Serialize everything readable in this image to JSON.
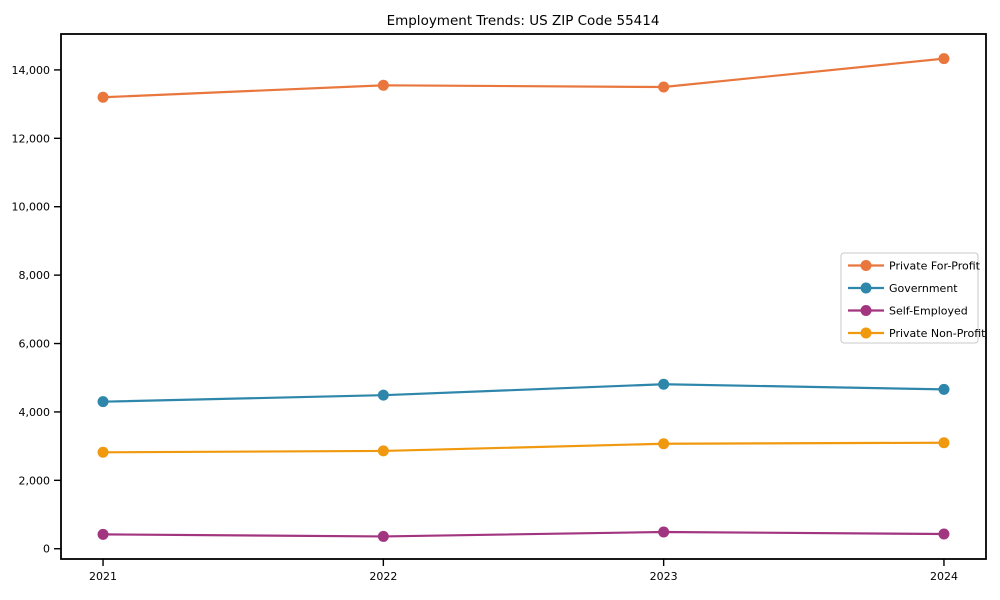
{
  "chart_data": {
    "type": "line",
    "title": "Employment Trends: US ZIP Code 55414",
    "xlabel": "",
    "ylabel": "",
    "x": [
      2021,
      2022,
      2023,
      2024
    ],
    "x_tick_labels": [
      "2021",
      "2022",
      "2023",
      "2024"
    ],
    "series": [
      {
        "name": "Private For-Profit",
        "color": "#e8763d",
        "values": [
          13200,
          13550,
          13500,
          14330
        ]
      },
      {
        "name": "Government",
        "color": "#2e86ab",
        "values": [
          4300,
          4490,
          4810,
          4660
        ]
      },
      {
        "name": "Self-Employed",
        "color": "#a23580",
        "values": [
          420,
          360,
          490,
          430
        ]
      },
      {
        "name": "Private Non-Profit",
        "color": "#f0990f",
        "values": [
          2820,
          2860,
          3070,
          3100
        ]
      }
    ],
    "yticks": [
      0,
      2000,
      4000,
      6000,
      8000,
      10000,
      12000,
      14000
    ],
    "ytick_labels": [
      "0",
      "2,000",
      "4,000",
      "6,000",
      "8,000",
      "10,000",
      "12,000",
      "14,000"
    ],
    "xlim": [
      2020.85,
      2024.15
    ],
    "ylim": [
      -300,
      15050
    ],
    "grid": false,
    "legend": {
      "position": "center right"
    },
    "axis_color": "#000000",
    "background_color": "#ffffff"
  }
}
